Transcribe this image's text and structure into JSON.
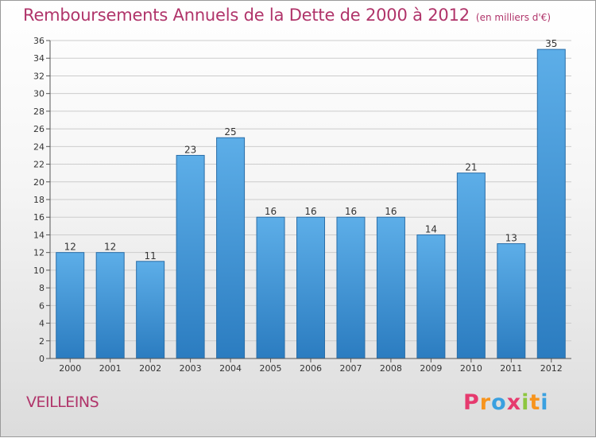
{
  "header": {
    "title": "Remboursements Annuels de la Dette de 2000 à 2012",
    "unit": "(en milliers d'€)"
  },
  "footer": {
    "commune": "VEILLEINS",
    "logo": {
      "text": "Proxiti",
      "letters": [
        {
          "char": "P",
          "color": "#e63a6e"
        },
        {
          "char": "r",
          "color": "#f7941d"
        },
        {
          "char": "o",
          "color": "#3aa0e0"
        },
        {
          "char": "x",
          "color": "#e63a6e"
        },
        {
          "char": "i",
          "color": "#8dc63f"
        },
        {
          "char": "t",
          "color": "#f7941d"
        },
        {
          "char": "i",
          "color": "#3aa0e0"
        }
      ]
    }
  },
  "colors": {
    "title": "#b0346a",
    "bar_top": "#5daee8",
    "bar_bottom": "#2b7cc0",
    "grid": "#cccccc"
  },
  "chart_data": {
    "type": "bar",
    "title": "Remboursements Annuels de la Dette de 2000 à 2012",
    "categories": [
      "2000",
      "2001",
      "2002",
      "2003",
      "2004",
      "2005",
      "2006",
      "2007",
      "2008",
      "2009",
      "2010",
      "2011",
      "2012"
    ],
    "values": [
      12,
      12,
      11,
      23,
      25,
      16,
      16,
      16,
      16,
      14,
      21,
      13,
      35
    ],
    "ylim": [
      0,
      36
    ],
    "yticks": [
      0,
      2,
      4,
      6,
      8,
      10,
      12,
      14,
      16,
      18,
      20,
      22,
      24,
      26,
      28,
      30,
      32,
      34,
      36
    ],
    "grid": true,
    "data_labels": true
  }
}
